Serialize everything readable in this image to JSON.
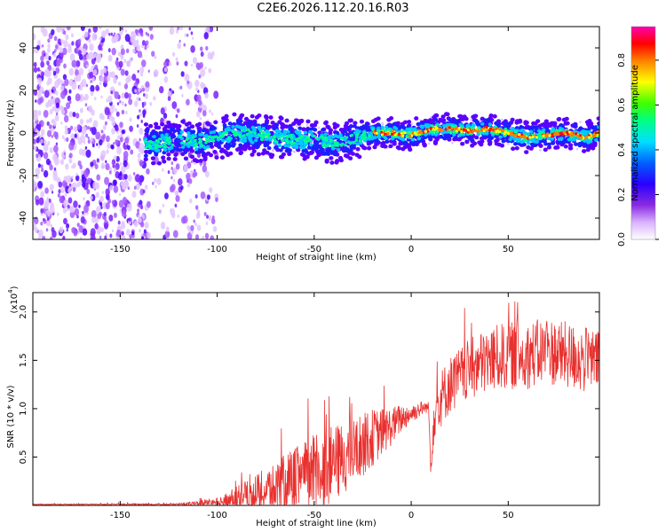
{
  "title": "C2E6.2026.112.20.16.R03",
  "chart_data": [
    {
      "type": "heatmap",
      "xlabel": "Height of straight line (km)",
      "ylabel": "Frequency (Hz)",
      "xlim": [
        -195,
        97
      ],
      "ylim": [
        -50,
        50
      ],
      "x_ticks": [
        -150,
        -100,
        -50,
        0,
        50
      ],
      "y_ticks": [
        -40,
        -20,
        0,
        20,
        40
      ],
      "colorbar": {
        "label": "Normalized spectral amplitude",
        "range": [
          0.0,
          0.95
        ],
        "ticks": [
          "0.0",
          "0.2",
          "0.4",
          "0.6",
          "0.8"
        ]
      },
      "ridge": {
        "x": [
          -140,
          -130,
          -120,
          -110,
          -100,
          -90,
          -80,
          -70,
          -60,
          -50,
          -40,
          -30,
          -20,
          -10,
          0,
          10,
          20,
          30,
          40,
          50,
          60,
          70,
          80,
          90,
          97
        ],
        "y": [
          -5,
          -5,
          -3,
          -4,
          -3,
          0,
          -1,
          -2,
          -3,
          -3,
          -5,
          -3,
          0,
          0,
          -1,
          2,
          2,
          1,
          2,
          0,
          -2,
          -1,
          0,
          -2,
          0
        ]
      },
      "colors": [
        "#ffffff",
        "#e0c0ff",
        "#9b30ff",
        "#3000ff",
        "#0080ff",
        "#00ffff",
        "#00ff00",
        "#ffff00",
        "#ff8000",
        "#ff0000",
        "#ff00ff"
      ]
    },
    {
      "type": "line",
      "xlabel": "Height of straight line (km)",
      "ylabel": "SNR (10 * v/v)",
      "y_multiplier": "(x10",
      "y_multiplier_exp": "4",
      "y_multiplier_close": ")",
      "xlim": [
        -195,
        97
      ],
      "ylim": [
        0,
        2.2
      ],
      "x_ticks": [
        -150,
        -100,
        -50,
        0,
        50
      ],
      "y_ticks": [
        "0.5",
        "1.0",
        "1.5",
        "2.0"
      ],
      "series": [
        {
          "color": "#e8302e",
          "envelope_x": [
            -195,
            -120,
            -100,
            -90,
            -80,
            -70,
            -60,
            -50,
            -40,
            -30,
            -20,
            -10,
            -5,
            0,
            5,
            9,
            10,
            12,
            20,
            30,
            40,
            50,
            60,
            70,
            80,
            90,
            97
          ],
          "envelope_mean": [
            0.01,
            0.01,
            0.03,
            0.08,
            0.12,
            0.18,
            0.25,
            0.33,
            0.42,
            0.55,
            0.7,
            0.82,
            0.9,
            0.95,
            1.0,
            1.02,
            0.4,
            1.0,
            1.25,
            1.4,
            1.5,
            1.55,
            1.55,
            1.6,
            1.55,
            1.5,
            1.5
          ],
          "envelope_amp": [
            0.005,
            0.01,
            0.05,
            0.12,
            0.2,
            0.28,
            0.35,
            0.4,
            0.4,
            0.35,
            0.3,
            0.2,
            0.15,
            0.1,
            0.08,
            0.05,
            0.1,
            0.3,
            0.3,
            0.32,
            0.35,
            0.35,
            0.35,
            0.35,
            0.35,
            0.35,
            0.3
          ]
        }
      ]
    }
  ]
}
